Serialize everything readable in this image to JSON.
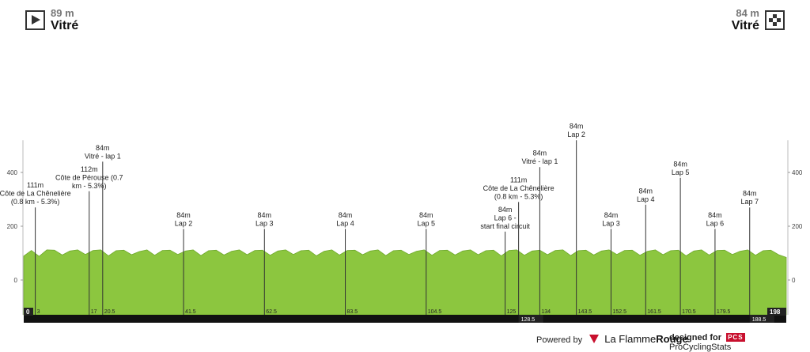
{
  "header": {
    "start": {
      "altitude": "89 m",
      "town": "Vitré",
      "icon": "play-icon"
    },
    "finish": {
      "altitude": "84 m",
      "town": "Vitré",
      "icon": "checkered-flag-icon"
    }
  },
  "chart_data": {
    "type": "area",
    "title": "",
    "xlabel": "",
    "ylabel": "",
    "xlim": [
      0,
      198
    ],
    "ylim": [
      -120,
      520
    ],
    "y_ticks": [
      0,
      200,
      400
    ],
    "grid": false,
    "x": [
      0,
      2,
      4,
      6,
      8,
      10,
      12,
      14,
      16,
      18,
      20,
      22,
      24,
      26,
      28,
      30,
      32,
      34,
      36,
      38,
      40,
      42,
      44,
      46,
      48,
      50,
      52,
      54,
      56,
      58,
      60,
      62,
      64,
      66,
      68,
      70,
      72,
      74,
      76,
      78,
      80,
      82,
      84,
      86,
      88,
      90,
      92,
      94,
      96,
      98,
      100,
      102,
      104,
      106,
      108,
      110,
      112,
      114,
      116,
      118,
      120,
      122,
      124,
      126,
      128,
      130,
      132,
      134,
      136,
      138,
      140,
      142,
      144,
      146,
      148,
      150,
      152,
      154,
      156,
      158,
      160,
      162,
      164,
      166,
      168,
      170,
      172,
      174,
      176,
      178,
      180,
      182,
      184,
      186,
      188,
      190,
      192,
      194,
      196,
      198
    ],
    "series": [
      {
        "values": [
          89,
          110,
          88,
          112,
          111,
          93,
          108,
          112,
          95,
          110,
          112,
          90,
          109,
          111,
          94,
          106,
          112,
          92,
          110,
          111,
          95,
          108,
          112,
          91,
          109,
          111,
          93,
          107,
          112,
          94,
          110,
          111,
          92,
          108,
          112,
          95,
          109,
          111,
          90,
          107,
          112,
          93,
          110,
          111,
          94,
          108,
          112,
          91,
          109,
          111,
          95,
          107,
          112,
          92,
          110,
          111,
          93,
          108,
          112,
          94,
          109,
          111,
          90,
          110,
          112,
          92,
          108,
          111,
          94,
          110,
          112,
          91,
          109,
          111,
          93,
          108,
          112,
          95,
          110,
          111,
          92,
          107,
          112,
          94,
          109,
          111,
          90,
          108,
          112,
          93,
          110,
          111,
          95,
          107,
          112,
          92,
          109,
          111,
          94,
          84
        ]
      }
    ],
    "km_markers": [
      {
        "km": 0,
        "label": "0",
        "highlight": true
      },
      {
        "km": 3,
        "label": "3"
      },
      {
        "km": 17,
        "label": "17"
      },
      {
        "km": 20.5,
        "label": "20.5"
      },
      {
        "km": 41.5,
        "label": "41.5"
      },
      {
        "km": 62.5,
        "label": "62.5"
      },
      {
        "km": 83.5,
        "label": "83.5"
      },
      {
        "km": 104.5,
        "label": "104.5"
      },
      {
        "km": 125,
        "label": "125"
      },
      {
        "km": 128.5,
        "label": "128.5",
        "below": true
      },
      {
        "km": 134,
        "label": "134"
      },
      {
        "km": 143.5,
        "label": "143.5"
      },
      {
        "km": 152.5,
        "label": "152.5"
      },
      {
        "km": 161.5,
        "label": "161.5"
      },
      {
        "km": 170.5,
        "label": "170.5"
      },
      {
        "km": 179.5,
        "label": "179.5"
      },
      {
        "km": 188.5,
        "label": "188.5",
        "below": true
      },
      {
        "km": 198,
        "label": "198",
        "highlight": true
      }
    ],
    "annotations": [
      {
        "km": 3,
        "top_alt": 270,
        "lines": [
          "111m",
          "Côte de La Chênelière",
          "(0.8 km - 5.3%)"
        ]
      },
      {
        "km": 17,
        "top_alt": 330,
        "lines": [
          "112m",
          "Côte de Pérouse (0.7",
          "km - 5.3%)"
        ]
      },
      {
        "km": 20.5,
        "top_alt": 440,
        "lines": [
          "84m",
          "Vitré - lap 1"
        ]
      },
      {
        "km": 41.5,
        "top_alt": 190,
        "lines": [
          "84m",
          "Lap 2"
        ]
      },
      {
        "km": 62.5,
        "top_alt": 190,
        "lines": [
          "84m",
          "Lap 3"
        ]
      },
      {
        "km": 83.5,
        "top_alt": 190,
        "lines": [
          "84m",
          "Lap 4"
        ]
      },
      {
        "km": 104.5,
        "top_alt": 190,
        "lines": [
          "84m",
          "Lap 5"
        ]
      },
      {
        "km": 125,
        "top_alt": 180,
        "lines": [
          "84m",
          "Lap 6 -",
          "start final circuit"
        ]
      },
      {
        "km": 128.5,
        "top_alt": 290,
        "lines": [
          "111m",
          "Côte de La Chênelière",
          "(0.8 km - 5.3%)"
        ]
      },
      {
        "km": 134,
        "top_alt": 420,
        "lines": [
          "84m",
          "Vitré - lap 1"
        ]
      },
      {
        "km": 143.5,
        "top_alt": 520,
        "lines": [
          "84m",
          "Lap 2"
        ]
      },
      {
        "km": 152.5,
        "top_alt": 190,
        "lines": [
          "84m",
          "Lap 3"
        ]
      },
      {
        "km": 161.5,
        "top_alt": 280,
        "lines": [
          "84m",
          "Lap 4"
        ]
      },
      {
        "km": 170.5,
        "top_alt": 380,
        "lines": [
          "84m",
          "Lap 5"
        ]
      },
      {
        "km": 179.5,
        "top_alt": 190,
        "lines": [
          "84m",
          "Lap 6"
        ]
      },
      {
        "km": 188.5,
        "top_alt": 270,
        "lines": [
          "84m",
          "Lap 7"
        ]
      }
    ],
    "colors": {
      "profile": "#8cc63f",
      "profile_edge": "#6ea82c",
      "marker_line": "#333333",
      "km_bar": "#111111"
    }
  },
  "footer": {
    "powered_by": "Powered by",
    "brand_light": "La Flamme",
    "brand_bold": "Rouge",
    "designed_for": "designed for",
    "pcs_badge": "PCS",
    "pcs_name": "ProCyclingStats"
  }
}
